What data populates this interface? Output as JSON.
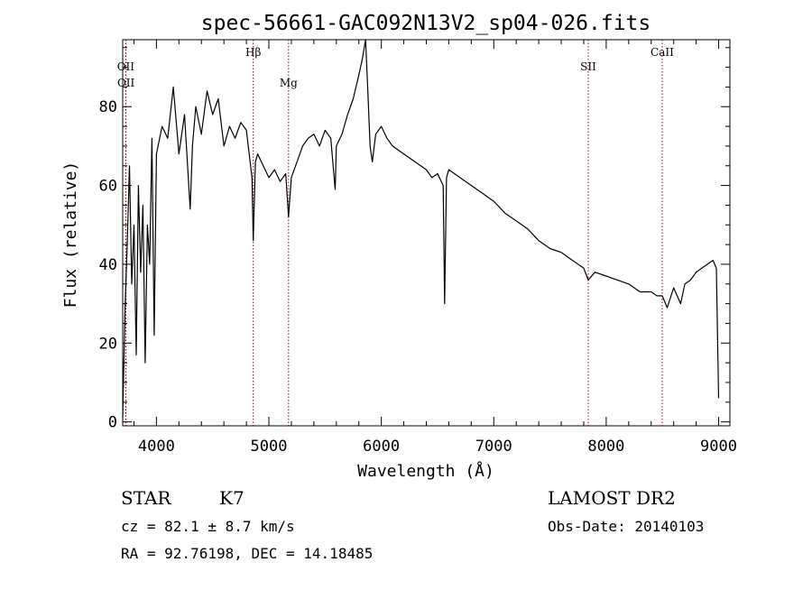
{
  "chart_data": {
    "type": "line",
    "title": "spec-56661-GAC092N13V2_sp04-026.fits",
    "xlabel": "Wavelength (Å)",
    "ylabel": "Flux (relative)",
    "xlim": [
      3700,
      9100
    ],
    "ylim": [
      -1,
      97
    ],
    "x_ticks": [
      4000,
      5000,
      6000,
      7000,
      8000,
      9000
    ],
    "y_ticks": [
      0,
      20,
      40,
      60,
      80
    ],
    "grid": false,
    "line_color": "#000000",
    "marker_color": "#a00000",
    "spectral_lines": [
      {
        "label": "OII",
        "wavelength": 3727,
        "row": 1
      },
      {
        "label": "OII",
        "wavelength": 3729,
        "row": 2
      },
      {
        "label": "Hβ",
        "wavelength": 4861,
        "row": 0
      },
      {
        "label": "Mg",
        "wavelength": 5175,
        "row": 2
      },
      {
        "label": "SII",
        "wavelength": 7840,
        "row": 1
      },
      {
        "label": "CaII",
        "wavelength": 8498,
        "row": 0
      }
    ],
    "series": [
      {
        "x": [
          3700,
          3720,
          3740,
          3760,
          3780,
          3800,
          3820,
          3840,
          3860,
          3880,
          3900,
          3920,
          3940,
          3960,
          3980,
          4000,
          4050,
          4100,
          4150,
          4200,
          4250,
          4300,
          4320,
          4350,
          4400,
          4450,
          4500,
          4550,
          4600,
          4650,
          4700,
          4750,
          4800,
          4850,
          4861,
          4880,
          4900,
          4950,
          5000,
          5050,
          5100,
          5150,
          5175,
          5200,
          5250,
          5300,
          5350,
          5400,
          5450,
          5500,
          5550,
          5590,
          5600,
          5650,
          5700,
          5750,
          5800,
          5830,
          5860,
          5880,
          5900,
          5920,
          5950,
          6000,
          6050,
          6100,
          6150,
          6200,
          6250,
          6300,
          6350,
          6400,
          6450,
          6500,
          6550,
          6563,
          6580,
          6600,
          6650,
          6700,
          6750,
          6800,
          6850,
          6900,
          6950,
          7000,
          7100,
          7200,
          7300,
          7400,
          7500,
          7600,
          7700,
          7800,
          7840,
          7900,
          8000,
          8100,
          8200,
          8300,
          8400,
          8450,
          8498,
          8542,
          8600,
          8662,
          8700,
          8750,
          8800,
          8850,
          8900,
          8950,
          8980,
          9000
        ],
        "y": [
          1,
          28,
          45,
          65,
          35,
          50,
          17,
          60,
          38,
          55,
          15,
          50,
          40,
          72,
          22,
          68,
          75,
          72,
          85,
          68,
          78,
          54,
          70,
          80,
          73,
          84,
          78,
          82,
          70,
          75,
          72,
          76,
          74,
          62,
          46,
          66,
          68,
          65,
          62,
          64,
          61,
          63,
          52,
          62,
          66,
          70,
          72,
          73,
          70,
          74,
          72,
          59,
          70,
          73,
          78,
          82,
          88,
          92,
          97,
          84,
          70,
          66,
          73,
          75,
          72,
          70,
          69,
          68,
          67,
          66,
          65,
          64,
          62,
          63,
          60,
          30,
          62,
          64,
          63,
          62,
          61,
          60,
          59,
          58,
          57,
          56,
          53,
          51,
          49,
          46,
          44,
          43,
          41,
          39,
          36,
          38,
          37,
          36,
          35,
          33,
          33,
          32,
          32,
          29,
          34,
          30,
          35,
          36,
          38,
          39,
          40,
          41,
          39,
          6
        ]
      }
    ]
  },
  "info": {
    "class_label": "STAR",
    "subclass": "K7",
    "survey": "LAMOST DR2",
    "cz_text": "cz = 82.1 ± 8.7 km/s",
    "obs_date": "Obs-Date: 20140103",
    "coords": "RA =  92.76198, DEC =  14.18485"
  }
}
